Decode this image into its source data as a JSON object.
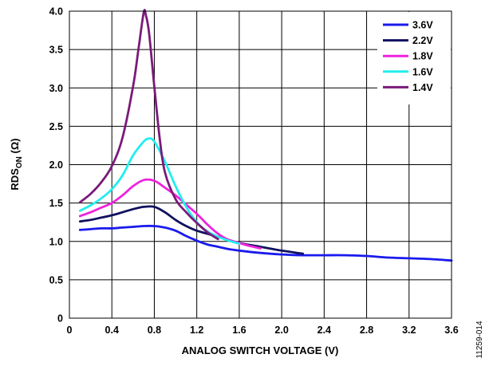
{
  "chart_data": {
    "type": "line",
    "xlabel": "ANALOG SWITCH VOLTAGE (V)",
    "ylabel": "RDS",
    "ylabel_sub": "ON",
    "ylabel_unit": " (Ω)",
    "xlim": [
      0,
      3.6
    ],
    "ylim": [
      0,
      4.0
    ],
    "x_ticks": [
      0,
      0.4,
      0.8,
      1.2,
      1.6,
      2.0,
      2.4,
      2.8,
      3.2,
      3.6
    ],
    "x_tick_labels": [
      "0",
      "0.4",
      "0.8",
      "1.2",
      "1.6",
      "2.0",
      "2.4",
      "2.8",
      "3.2",
      "3.6"
    ],
    "y_ticks": [
      0,
      0.5,
      1.0,
      1.5,
      2.0,
      2.5,
      3.0,
      3.5,
      4.0
    ],
    "y_tick_labels": [
      "0",
      "0.5",
      "1.0",
      "1.5",
      "2.0",
      "2.5",
      "3.0",
      "3.5",
      "4.0"
    ],
    "grid": true,
    "legend_position": "top-right",
    "series": [
      {
        "name": "3.6V",
        "color": "#1a1aee",
        "points": [
          [
            0.1,
            1.15
          ],
          [
            0.2,
            1.16
          ],
          [
            0.3,
            1.17
          ],
          [
            0.4,
            1.17
          ],
          [
            0.5,
            1.18
          ],
          [
            0.6,
            1.19
          ],
          [
            0.7,
            1.2
          ],
          [
            0.8,
            1.2
          ],
          [
            0.9,
            1.18
          ],
          [
            1.0,
            1.14
          ],
          [
            1.1,
            1.07
          ],
          [
            1.2,
            1.01
          ],
          [
            1.3,
            0.96
          ],
          [
            1.4,
            0.93
          ],
          [
            1.5,
            0.9
          ],
          [
            1.6,
            0.88
          ],
          [
            1.8,
            0.85
          ],
          [
            2.0,
            0.83
          ],
          [
            2.2,
            0.82
          ],
          [
            2.4,
            0.82
          ],
          [
            2.6,
            0.82
          ],
          [
            2.8,
            0.81
          ],
          [
            3.0,
            0.79
          ],
          [
            3.2,
            0.78
          ],
          [
            3.4,
            0.77
          ],
          [
            3.6,
            0.75
          ]
        ]
      },
      {
        "name": "2.2V",
        "color": "#101060",
        "points": [
          [
            0.1,
            1.26
          ],
          [
            0.2,
            1.28
          ],
          [
            0.3,
            1.31
          ],
          [
            0.4,
            1.34
          ],
          [
            0.5,
            1.38
          ],
          [
            0.6,
            1.42
          ],
          [
            0.7,
            1.45
          ],
          [
            0.8,
            1.45
          ],
          [
            0.9,
            1.38
          ],
          [
            1.0,
            1.28
          ],
          [
            1.1,
            1.2
          ],
          [
            1.2,
            1.14
          ],
          [
            1.3,
            1.1
          ],
          [
            1.4,
            1.06
          ],
          [
            1.5,
            1.02
          ],
          [
            1.6,
            0.98
          ],
          [
            1.8,
            0.93
          ],
          [
            2.0,
            0.88
          ],
          [
            2.1,
            0.86
          ],
          [
            2.2,
            0.84
          ]
        ]
      },
      {
        "name": "1.8V",
        "color": "#ee22dd",
        "points": [
          [
            0.1,
            1.33
          ],
          [
            0.2,
            1.38
          ],
          [
            0.3,
            1.44
          ],
          [
            0.4,
            1.5
          ],
          [
            0.5,
            1.6
          ],
          [
            0.6,
            1.72
          ],
          [
            0.7,
            1.8
          ],
          [
            0.8,
            1.79
          ],
          [
            0.9,
            1.7
          ],
          [
            1.0,
            1.6
          ],
          [
            1.1,
            1.48
          ],
          [
            1.2,
            1.36
          ],
          [
            1.3,
            1.22
          ],
          [
            1.4,
            1.1
          ],
          [
            1.5,
            1.02
          ],
          [
            1.6,
            0.98
          ],
          [
            1.7,
            0.94
          ],
          [
            1.8,
            0.91
          ]
        ]
      },
      {
        "name": "1.6V",
        "color": "#22eeee",
        "points": [
          [
            0.1,
            1.4
          ],
          [
            0.2,
            1.47
          ],
          [
            0.3,
            1.56
          ],
          [
            0.4,
            1.68
          ],
          [
            0.5,
            1.86
          ],
          [
            0.6,
            2.12
          ],
          [
            0.7,
            2.3
          ],
          [
            0.75,
            2.34
          ],
          [
            0.8,
            2.3
          ],
          [
            0.9,
            2.04
          ],
          [
            1.0,
            1.72
          ],
          [
            1.1,
            1.45
          ],
          [
            1.2,
            1.25
          ],
          [
            1.3,
            1.13
          ],
          [
            1.4,
            1.06
          ],
          [
            1.5,
            1.01
          ],
          [
            1.6,
            0.97
          ]
        ]
      },
      {
        "name": "1.4V",
        "color": "#7a1a7a",
        "points": [
          [
            0.1,
            1.51
          ],
          [
            0.2,
            1.62
          ],
          [
            0.3,
            1.77
          ],
          [
            0.4,
            1.98
          ],
          [
            0.5,
            2.35
          ],
          [
            0.6,
            3.02
          ],
          [
            0.65,
            3.5
          ],
          [
            0.7,
            3.98
          ],
          [
            0.72,
            3.95
          ],
          [
            0.75,
            3.72
          ],
          [
            0.8,
            3.02
          ],
          [
            0.85,
            2.35
          ],
          [
            0.9,
            1.9
          ],
          [
            1.0,
            1.55
          ],
          [
            1.1,
            1.38
          ],
          [
            1.2,
            1.24
          ],
          [
            1.3,
            1.12
          ],
          [
            1.4,
            1.03
          ]
        ]
      }
    ]
  },
  "figure_id": "11259-014"
}
